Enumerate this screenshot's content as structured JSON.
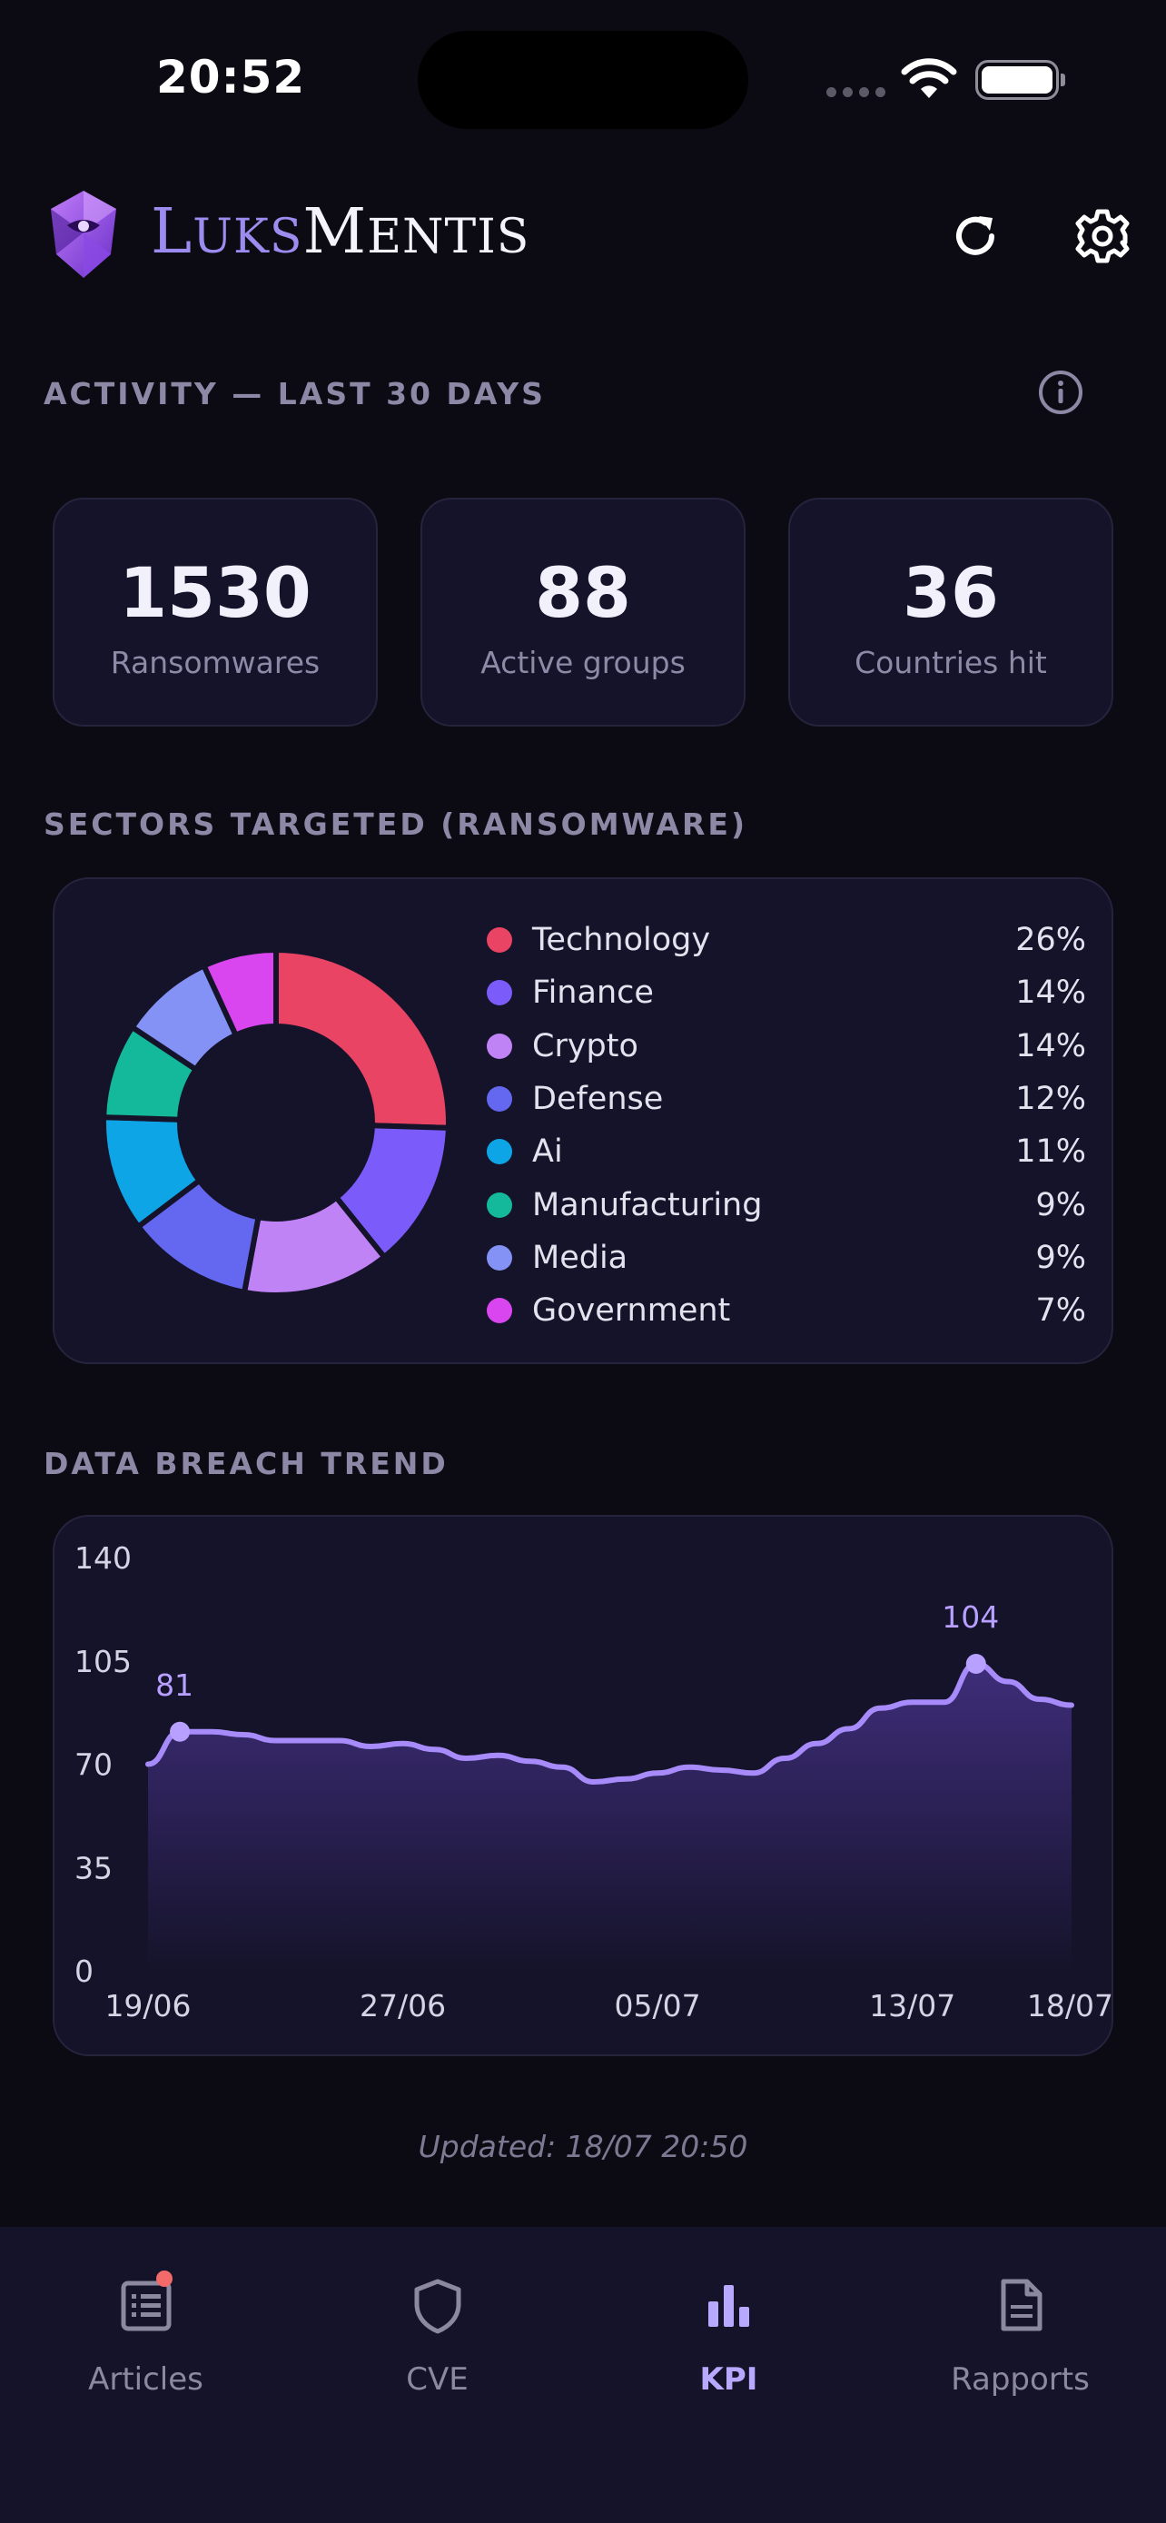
{
  "status_bar": {
    "time": "20:52"
  },
  "header": {
    "brand_part1_big": "L",
    "brand_part1_small": "UKS",
    "brand_part2_big": "M",
    "brand_part2_small": "ENTIS",
    "icons": [
      "luksmentis-logo-icon",
      "refresh-icon",
      "settings-gear-icon"
    ]
  },
  "activity": {
    "title": "ACTIVITY — LAST 30 DAYS",
    "stats": [
      {
        "value": "1530",
        "label": "Ransomwares"
      },
      {
        "value": "88",
        "label": "Active groups"
      },
      {
        "value": "36",
        "label": "Countries hit"
      }
    ]
  },
  "sectors": {
    "title": "SECTORS TARGETED (RANSOMWARE)",
    "items": [
      {
        "name": "Technology",
        "pct": "26%",
        "value": 26,
        "color": "#ea4464"
      },
      {
        "name": "Finance",
        "pct": "14%",
        "value": 14,
        "color": "#7b5cfa"
      },
      {
        "name": "Crypto",
        "pct": "14%",
        "value": 14,
        "color": "#c083f6"
      },
      {
        "name": "Defense",
        "pct": "12%",
        "value": 12,
        "color": "#6468f0"
      },
      {
        "name": "Ai",
        "pct": "11%",
        "value": 11,
        "color": "#0ea5e6"
      },
      {
        "name": "Manufacturing",
        "pct": "9%",
        "value": 9,
        "color": "#14b89a"
      },
      {
        "name": "Media",
        "pct": "9%",
        "value": 9,
        "color": "#8492f6"
      },
      {
        "name": "Government",
        "pct": "7%",
        "value": 7,
        "color": "#d946ef"
      }
    ]
  },
  "trend": {
    "title": "DATA BREACH TREND"
  },
  "chart_data": {
    "type": "area",
    "ylim": [
      0,
      140
    ],
    "yticks": [
      "0",
      "35",
      "70",
      "105",
      "140"
    ],
    "xticks": [
      "19/06",
      "27/06",
      "05/07",
      "13/07",
      "18/07"
    ],
    "x": [
      "19/06",
      "20/06",
      "21/06",
      "22/06",
      "23/06",
      "24/06",
      "25/06",
      "26/06",
      "27/06",
      "28/06",
      "29/06",
      "30/06",
      "01/07",
      "02/07",
      "03/07",
      "04/07",
      "05/07",
      "06/07",
      "07/07",
      "08/07",
      "09/07",
      "10/07",
      "11/07",
      "12/07",
      "13/07",
      "14/07",
      "15/07",
      "16/07",
      "17/07",
      "18/07"
    ],
    "values": [
      70,
      81,
      81,
      80,
      78,
      78,
      78,
      76,
      77,
      75,
      72,
      73,
      71,
      69,
      64,
      65,
      67,
      69,
      68,
      67,
      72,
      77,
      82,
      89,
      91,
      91,
      104,
      98,
      92,
      90
    ],
    "annotations": [
      {
        "x": "20/06",
        "value": 81,
        "label": "81"
      },
      {
        "x": "15/07",
        "value": 104,
        "label": "104"
      }
    ],
    "line_color": "#a78bfa",
    "grid": false
  },
  "footer": {
    "updated": "Updated: 18/07 20:50"
  },
  "tabs": [
    {
      "label": "Articles",
      "icon": "articles-list-icon",
      "active": false,
      "badge": true
    },
    {
      "label": "CVE",
      "icon": "shield-icon",
      "active": false,
      "badge": false
    },
    {
      "label": "KPI",
      "icon": "bar-chart-icon",
      "active": true,
      "badge": false
    },
    {
      "label": "Rapports",
      "icon": "document-icon",
      "active": false,
      "badge": false
    }
  ]
}
